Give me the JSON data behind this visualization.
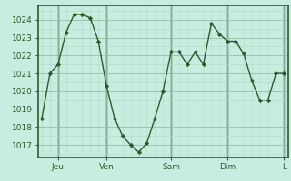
{
  "x_values": [
    0,
    1,
    2,
    3,
    4,
    5,
    6,
    7,
    8,
    9,
    10,
    11,
    12,
    13,
    14,
    15,
    16,
    17,
    18,
    19,
    20,
    21,
    22,
    23,
    24,
    25,
    26,
    27,
    28,
    29,
    30
  ],
  "y_values": [
    1018.5,
    1021.0,
    1021.5,
    1023.3,
    1024.3,
    1024.3,
    1024.1,
    1022.8,
    1020.3,
    1018.5,
    1017.5,
    1017.0,
    1016.6,
    1017.1,
    1018.5,
    1020.0,
    1022.2,
    1022.2,
    1021.5,
    1022.2,
    1021.5,
    1023.8,
    1023.2,
    1022.8,
    1022.8,
    1022.1,
    1020.6,
    1019.5,
    1019.5,
    1021.0,
    1021.0
  ],
  "x_ticks_pos": [
    2,
    8,
    16,
    23,
    30
  ],
  "x_tick_labels": [
    "Jeu",
    "Ven",
    "Sam",
    "Dim",
    "L"
  ],
  "x_vlines": [
    2,
    8,
    16,
    23,
    30
  ],
  "y_ticks": [
    1017,
    1018,
    1019,
    1020,
    1021,
    1022,
    1023,
    1024
  ],
  "line_color": "#2d5a2d",
  "marker_color": "#2d5a2d",
  "bg_color": "#c8ece0",
  "axis_color": "#2d5a2d",
  "tick_color": "#2d5a2d",
  "grid_minor_color": "#b0d8c8",
  "grid_major_color": "#99bbaa",
  "ylim": [
    1016.3,
    1024.8
  ],
  "xlim": [
    -0.5,
    30.5
  ],
  "figsize": [
    3.2,
    2.0
  ],
  "dpi": 100
}
